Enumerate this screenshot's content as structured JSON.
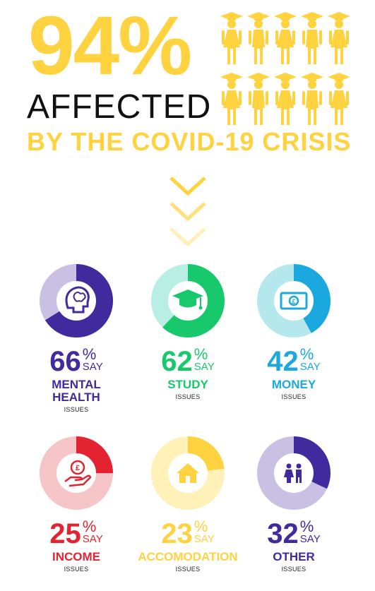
{
  "headline": {
    "percent": "94%",
    "line1": "AFFECTED",
    "line2": "BY THE COVID-19 CRISIS"
  },
  "colors": {
    "yellow": "#FFD23F",
    "purple": "#3F2A9E",
    "purple_light": "#C9C0E3",
    "green": "#17C96A",
    "green_light": "#B9EEE4",
    "blue": "#1BA8DE",
    "blue_light": "#B5E8EC",
    "red": "#E42330",
    "red_light": "#F6C5C8",
    "yellow_light": "#FFF1B8"
  },
  "stats": [
    {
      "value": "66",
      "sign": "%",
      "say": "SAY",
      "category": [
        "MENTAL",
        "HEALTH"
      ],
      "issues": "ISSUES",
      "percent": 66,
      "icon": "brain-head-icon",
      "color": "#3F2A9E",
      "track": "#C9C0E3"
    },
    {
      "value": "62",
      "sign": "%",
      "say": "SAY",
      "category": [
        "STUDY"
      ],
      "issues": "ISSUES",
      "percent": 62,
      "icon": "graduation-cap-icon",
      "color": "#17C96A",
      "track": "#B9EEE4"
    },
    {
      "value": "42",
      "sign": "%",
      "say": "SAY",
      "category": [
        "MONEY"
      ],
      "issues": "ISSUES",
      "percent": 42,
      "icon": "banknote-icon",
      "color": "#1BA8DE",
      "track": "#B5E8EC"
    },
    {
      "value": "25",
      "sign": "%",
      "say": "SAY",
      "category": [
        "INCOME"
      ],
      "issues": "ISSUES",
      "percent": 25,
      "icon": "coin-hand-icon",
      "color": "#E42330",
      "track": "#F6C5C8"
    },
    {
      "value": "23",
      "sign": "%",
      "say": "SAY",
      "category": [
        "ACCOMODATION"
      ],
      "issues": "ISSUES",
      "percent": 23,
      "icon": "house-icon",
      "color": "#FFD23F",
      "track": "#FFF1B8"
    },
    {
      "value": "32",
      "sign": "%",
      "say": "SAY",
      "category": [
        "OTHER"
      ],
      "issues": "ISSUES",
      "percent": 32,
      "icon": "people-icon",
      "color": "#3F2A9E",
      "track": "#C9C0E3"
    }
  ]
}
